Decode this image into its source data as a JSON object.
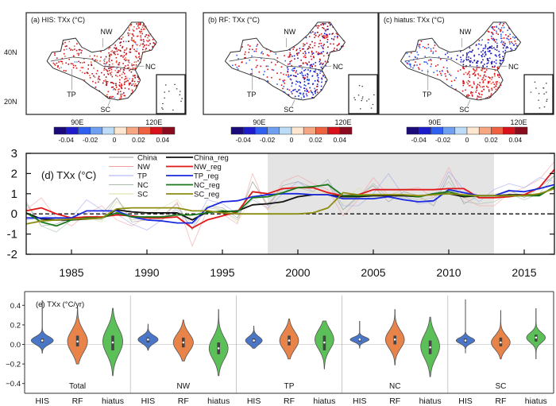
{
  "maps": [
    {
      "title": "(a) HIS: TXx (°C)",
      "regions": [
        "NW",
        "NC",
        "TP",
        "SC"
      ],
      "dominant": "warm"
    },
    {
      "title": "(b) RF: TXx (°C)",
      "regions": [
        "NW",
        "NC",
        "TP",
        "SC"
      ],
      "dominant": "mixed"
    },
    {
      "title": "(c) hiatus: TXx (°C)",
      "regions": [
        "NW",
        "NC",
        "TP",
        "SC"
      ],
      "dominant": "split"
    }
  ],
  "map_axes": {
    "lat_labels": [
      "40N",
      "20N"
    ],
    "lon_labels": [
      "90E",
      "120E"
    ]
  },
  "colorbar": {
    "colors": [
      "#1a0a7a",
      "#1c1ccc",
      "#2f5ff0",
      "#6f9ff0",
      "#bcdcf8",
      "#fde7d0",
      "#f7a682",
      "#f0623f",
      "#d8101a",
      "#8a0a1e"
    ],
    "tick_labels": [
      "-0.04",
      "-0.02",
      "0",
      "0.02",
      "0.04"
    ]
  },
  "chart_data": [
    {
      "type": "line",
      "title": "(d) TXx (°C)",
      "xlabel": "",
      "ylabel": "",
      "xlim": [
        1982,
        2017
      ],
      "ylim": [
        -2,
        3
      ],
      "xticks": [
        1985,
        1990,
        1995,
        2000,
        2005,
        2010,
        2015
      ],
      "yticks": [
        -2,
        -1,
        0,
        1,
        2,
        3
      ],
      "shaded_period": [
        1998,
        2013
      ],
      "zero_line": true,
      "legend_position": "top-left",
      "x": [
        1982,
        1983,
        1984,
        1985,
        1986,
        1987,
        1988,
        1989,
        1990,
        1991,
        1992,
        1993,
        1994,
        1995,
        1996,
        1997,
        1998,
        1999,
        2000,
        2001,
        2002,
        2003,
        2004,
        2005,
        2006,
        2007,
        2008,
        2009,
        2010,
        2011,
        2012,
        2013,
        2014,
        2015,
        2016,
        2017
      ],
      "series": [
        {
          "name": "China",
          "color": "#9a9a9a",
          "style": "thin",
          "values": [
            0.5,
            -0.6,
            -0.5,
            -0.2,
            -0.3,
            0.0,
            0.8,
            -0.4,
            -0.3,
            -0.1,
            0.5,
            -0.8,
            0.4,
            0.3,
            -0.2,
            1.6,
            0.4,
            1.4,
            1.6,
            1.3,
            1.5,
            0.2,
            0.9,
            1.4,
            0.6,
            1.1,
            0.9,
            0.4,
            1.9,
            0.5,
            0.9,
            0.9,
            1.2,
            0.8,
            1.3,
            1.9
          ]
        },
        {
          "name": "NW",
          "color": "#f4a0a0",
          "style": "thin",
          "values": [
            0.2,
            0.8,
            -0.2,
            -0.6,
            0.0,
            0.4,
            -0.3,
            -0.6,
            -0.1,
            -0.3,
            0.6,
            -1.6,
            0.2,
            0.0,
            -0.5,
            2.0,
            0.2,
            1.6,
            1.9,
            1.5,
            1.2,
            -0.1,
            0.7,
            1.8,
            0.9,
            1.2,
            1.3,
            0.8,
            2.3,
            0.8,
            0.4,
            0.4,
            1.0,
            1.3,
            1.7,
            2.6
          ]
        },
        {
          "name": "TP",
          "color": "#a0a8f0",
          "style": "thin",
          "values": [
            -0.3,
            -0.2,
            0.0,
            -0.2,
            0.7,
            0.2,
            0.0,
            -0.5,
            -0.8,
            -0.3,
            0.2,
            -0.7,
            0.7,
            0.5,
            0.0,
            0.7,
            0.3,
            1.0,
            1.6,
            1.1,
            1.7,
            0.4,
            0.4,
            1.0,
            2.0,
            0.9,
            0.5,
            0.6,
            2.1,
            1.2,
            0.6,
            1.2,
            1.5,
            1.3,
            1.8,
            1.6
          ]
        },
        {
          "name": "NC",
          "color": "#a8bca8",
          "style": "thin",
          "values": [
            0.6,
            -0.6,
            -0.9,
            -0.3,
            -0.2,
            -0.3,
            0.8,
            -0.3,
            -0.2,
            -0.3,
            0.3,
            -0.5,
            0.3,
            0.2,
            -0.3,
            1.6,
            0.5,
            1.2,
            1.3,
            1.1,
            1.7,
            0.2,
            0.8,
            1.5,
            0.8,
            0.8,
            0.7,
            0.8,
            1.6,
            0.6,
            0.5,
            0.6,
            1.0,
            0.7,
            1.0,
            1.9
          ]
        },
        {
          "name": "SC",
          "color": "#d8dca0",
          "style": "thin",
          "values": [
            -0.5,
            -0.4,
            -0.3,
            -0.3,
            -0.2,
            -0.4,
            0.6,
            0.1,
            0.0,
            0.3,
            0.7,
            -0.3,
            0.4,
            0.2,
            -0.4,
            0.9,
            0.2,
            0.6,
            0.9,
            1.1,
            1.0,
            0.5,
            1.3,
            0.8,
            0.9,
            1.2,
            0.8,
            0.6,
            1.3,
            0.8,
            0.8,
            1.0,
            1.1,
            0.9,
            1.2,
            1.6
          ]
        },
        {
          "name": "China_reg",
          "color": "#111111",
          "style": "bold",
          "values": [
            0.05,
            -0.25,
            -0.3,
            -0.3,
            -0.25,
            -0.2,
            0.2,
            0.1,
            0.05,
            0.05,
            0.05,
            -0.3,
            0.1,
            0.1,
            0.15,
            0.45,
            0.5,
            0.6,
            0.85,
            0.95,
            0.95,
            0.85,
            0.85,
            0.9,
            0.9,
            0.9,
            0.85,
            1.0,
            1.0,
            0.85,
            0.9,
            0.9,
            0.95,
            0.95,
            0.95,
            1.3
          ]
        },
        {
          "name": "NW_reg",
          "color": "#e01818",
          "style": "bold",
          "values": [
            0.15,
            0.3,
            0.0,
            -0.2,
            -0.15,
            -0.15,
            -0.05,
            -0.1,
            -0.2,
            -0.2,
            -0.15,
            -0.7,
            -0.3,
            -0.1,
            0.1,
            1.1,
            1.0,
            1.25,
            1.3,
            1.3,
            1.05,
            0.9,
            0.95,
            1.2,
            1.2,
            1.2,
            1.2,
            1.2,
            1.25,
            1.25,
            0.8,
            0.8,
            0.85,
            0.95,
            1.3,
            2.2
          ]
        },
        {
          "name": "TP_reg",
          "color": "#1a28e0",
          "style": "bold",
          "values": [
            -0.2,
            -0.2,
            -0.2,
            -0.2,
            0.15,
            0.15,
            0.15,
            -0.15,
            -0.3,
            -0.35,
            -0.45,
            -0.45,
            0.3,
            0.6,
            0.65,
            0.85,
            0.95,
            1.0,
            1.0,
            0.95,
            0.95,
            0.75,
            0.75,
            0.75,
            0.85,
            0.7,
            0.6,
            0.65,
            1.2,
            1.05,
            0.9,
            0.9,
            1.15,
            1.1,
            1.25,
            1.45
          ]
        },
        {
          "name": "NC_reg",
          "color": "#1a7a1a",
          "style": "bold",
          "values": [
            0.05,
            -0.4,
            -0.6,
            -0.3,
            -0.2,
            -0.2,
            0.05,
            -0.15,
            -0.15,
            -0.15,
            -0.05,
            -0.05,
            0.05,
            0.15,
            0.1,
            0.8,
            0.85,
            1.05,
            1.3,
            1.35,
            1.45,
            0.9,
            0.9,
            0.95,
            0.95,
            0.95,
            0.85,
            1.0,
            1.1,
            0.9,
            0.9,
            0.9,
            0.9,
            0.9,
            0.9,
            1.35
          ]
        },
        {
          "name": "SC_reg",
          "color": "#8c8c10",
          "style": "bold",
          "values": [
            -0.5,
            -0.35,
            -0.3,
            -0.25,
            -0.25,
            -0.2,
            0.25,
            0.3,
            0.3,
            0.3,
            0.3,
            0.15,
            0.15,
            0.05,
            0.0,
            0.0,
            0.0,
            0.0,
            0.0,
            0.05,
            0.3,
            1.05,
            0.95,
            0.95,
            0.95,
            0.95,
            0.9,
            0.95,
            1.0,
            0.95,
            0.9,
            0.9,
            0.9,
            0.9,
            1.0,
            1.25
          ]
        }
      ]
    },
    {
      "type": "violin",
      "title": "(e) TXx (°C/yr)",
      "ylim": [
        -0.5,
        0.5
      ],
      "yticks": [
        -0.4,
        -0.2,
        0.0,
        0.2,
        0.4
      ],
      "ytick_labels": [
        "−0.4",
        "−0.2",
        "0.0",
        "0.2",
        "0.4"
      ],
      "groups": [
        "Total",
        "NW",
        "TP",
        "NC",
        "SC"
      ],
      "categories": [
        "HIS",
        "RF",
        "hiatus"
      ],
      "category_colors": {
        "HIS": "#4a76c8",
        "RF": "#e8844a",
        "hiatus": "#5cc058"
      },
      "violins": [
        {
          "group": "Total",
          "cat": "HIS",
          "min": -0.09,
          "max": 0.45,
          "q1": 0.02,
          "median": 0.04,
          "q3": 0.06,
          "center": 0.04,
          "spread": 0.04,
          "width": 1.0
        },
        {
          "group": "Total",
          "cat": "RF",
          "min": -0.2,
          "max": 0.38,
          "q1": -0.02,
          "median": 0.03,
          "q3": 0.09,
          "center": 0.03,
          "spread": 0.11,
          "width": 0.9
        },
        {
          "group": "Total",
          "cat": "hiatus",
          "min": -0.32,
          "max": 0.37,
          "q1": -0.06,
          "median": 0.02,
          "q3": 0.09,
          "center": 0.03,
          "spread": 0.13,
          "width": 0.9
        },
        {
          "group": "NW",
          "cat": "HIS",
          "min": -0.06,
          "max": 0.21,
          "q1": 0.02,
          "median": 0.05,
          "q3": 0.07,
          "center": 0.05,
          "spread": 0.04,
          "width": 0.9
        },
        {
          "group": "NW",
          "cat": "RF",
          "min": -0.17,
          "max": 0.25,
          "q1": -0.03,
          "median": 0.02,
          "q3": 0.07,
          "center": 0.02,
          "spread": 0.09,
          "width": 0.9
        },
        {
          "group": "NW",
          "cat": "hiatus",
          "min": -0.32,
          "max": 0.36,
          "q1": -0.1,
          "median": -0.04,
          "q3": 0.02,
          "center": -0.04,
          "spread": 0.11,
          "width": 0.85
        },
        {
          "group": "TP",
          "cat": "HIS",
          "min": -0.04,
          "max": 0.19,
          "q1": 0.02,
          "median": 0.04,
          "q3": 0.06,
          "center": 0.04,
          "spread": 0.04,
          "width": 0.75
        },
        {
          "group": "TP",
          "cat": "RF",
          "min": -0.15,
          "max": 0.26,
          "q1": -0.01,
          "median": 0.04,
          "q3": 0.09,
          "center": 0.04,
          "spread": 0.09,
          "width": 0.85
        },
        {
          "group": "TP",
          "cat": "hiatus",
          "min": -0.25,
          "max": 0.24,
          "q1": -0.06,
          "median": 0.02,
          "q3": 0.09,
          "center": 0.05,
          "spread": 0.1,
          "width": 0.85
        },
        {
          "group": "NC",
          "cat": "HIS",
          "min": -0.04,
          "max": 0.24,
          "q1": 0.03,
          "median": 0.05,
          "q3": 0.06,
          "center": 0.05,
          "spread": 0.025,
          "width": 0.85
        },
        {
          "group": "NC",
          "cat": "RF",
          "min": -0.21,
          "max": 0.36,
          "q1": 0.0,
          "median": 0.05,
          "q3": 0.09,
          "center": 0.05,
          "spread": 0.09,
          "width": 0.85
        },
        {
          "group": "NC",
          "cat": "hiatus",
          "min": -0.33,
          "max": 0.28,
          "q1": -0.1,
          "median": -0.03,
          "q3": 0.04,
          "center": -0.02,
          "spread": 0.12,
          "width": 0.85
        },
        {
          "group": "SC",
          "cat": "HIS",
          "min": -0.09,
          "max": 0.46,
          "q1": 0.02,
          "median": 0.04,
          "q3": 0.06,
          "center": 0.04,
          "spread": 0.03,
          "width": 0.85
        },
        {
          "group": "SC",
          "cat": "RF",
          "min": -0.15,
          "max": 0.35,
          "q1": -0.02,
          "median": 0.02,
          "q3": 0.07,
          "center": 0.02,
          "spread": 0.07,
          "width": 0.85
        },
        {
          "group": "SC",
          "cat": "hiatus",
          "min": -0.15,
          "max": 0.37,
          "q1": 0.03,
          "median": 0.07,
          "q3": 0.1,
          "center": 0.07,
          "spread": 0.05,
          "width": 0.85
        }
      ]
    }
  ]
}
